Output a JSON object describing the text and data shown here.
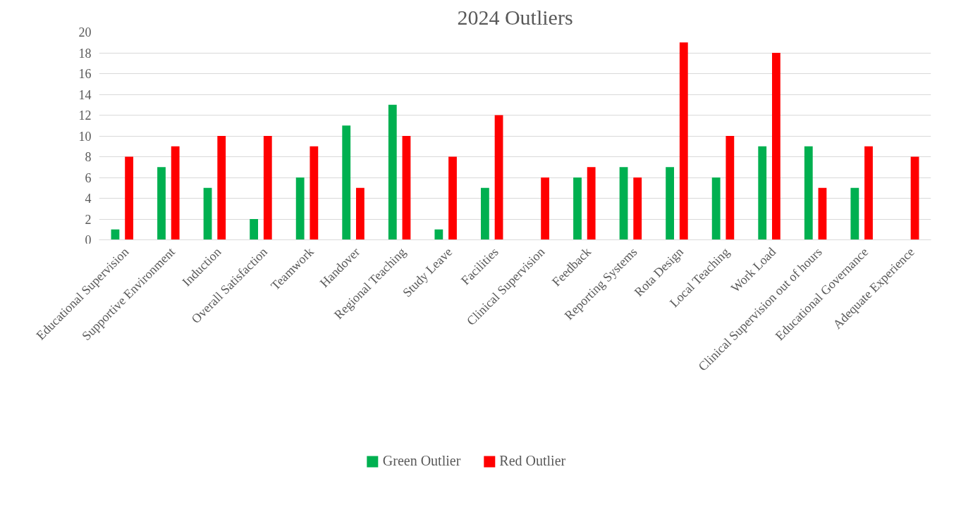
{
  "chart_data": {
    "type": "bar",
    "title": "2024 Outliers",
    "categories": [
      "Educational Supervision",
      "Supportive Environment",
      "Induction",
      "Overall Satisfaction",
      "Teamwork",
      "Handover",
      "Regional Teaching",
      "Study Leave",
      "Facilities",
      "Clinical Supervision",
      "Feedback",
      "Reporting Systems",
      "Rota Design",
      "Local Teaching",
      "Work Load",
      "Clinical Supervision out of hours",
      "Educational Governance",
      "Adequate Experience"
    ],
    "series": [
      {
        "name": "Green Outlier",
        "color": "#00b050",
        "values": [
          1,
          7,
          5,
          2,
          6,
          11,
          13,
          1,
          5,
          null,
          6,
          7,
          7,
          6,
          9,
          9,
          5,
          null
        ]
      },
      {
        "name": "Red Outlier",
        "color": "#ff0000",
        "values": [
          8,
          9,
          10,
          10,
          9,
          5,
          10,
          8,
          12,
          6,
          7,
          6,
          19,
          10,
          18,
          5,
          9,
          8
        ]
      }
    ],
    "ylim": [
      0,
      20
    ],
    "yticks": [
      0,
      2,
      4,
      6,
      8,
      10,
      12,
      14,
      16,
      18,
      20
    ],
    "grid": "y",
    "legend": "bottom"
  }
}
